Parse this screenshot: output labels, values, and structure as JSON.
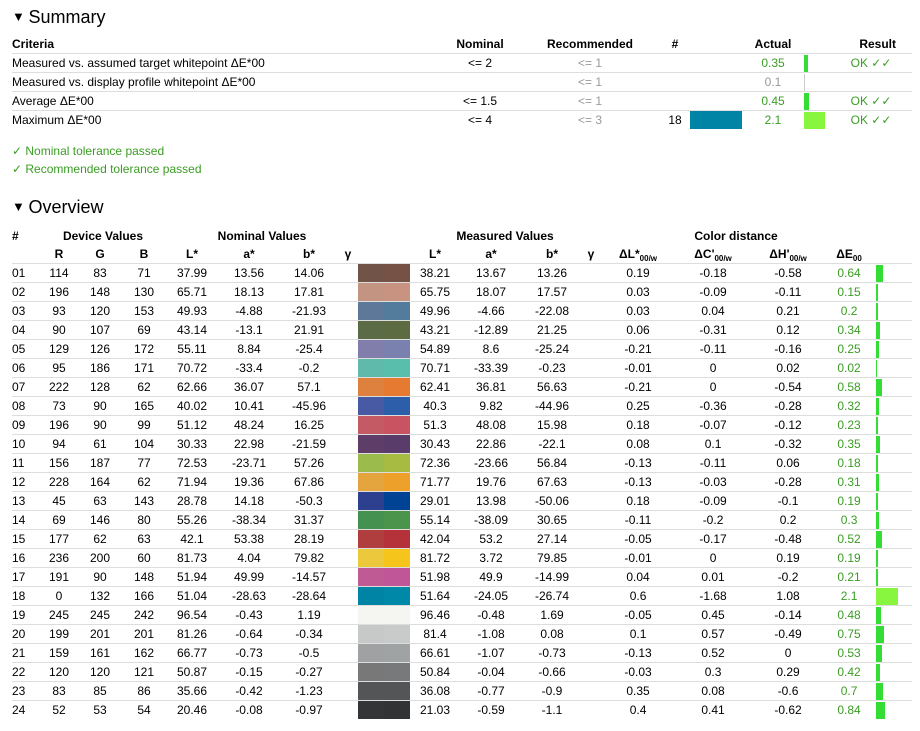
{
  "summary": {
    "heading": "Summary",
    "columns": [
      "Criteria",
      "Nominal",
      "Recommended",
      "#",
      "Actual",
      "Result"
    ],
    "rows": [
      {
        "criteria": "Measured vs. assumed target whitepoint ΔE*00",
        "nominal": "<= 2",
        "recommended": "<= 1",
        "actual": 0.35,
        "result": "OK ✓✓"
      },
      {
        "criteria": "Measured vs. display profile whitepoint ΔE*00",
        "recommended": "<= 1",
        "actual": 0.1
      },
      {
        "criteria": "Average ΔE*00",
        "nominal": "<= 1.5",
        "recommended": "<= 1",
        "actual": 0.45,
        "result": "OK ✓✓"
      },
      {
        "criteria": "Maximum ΔE*00",
        "nominal": "<= 4",
        "recommended": "<= 3",
        "patch": 18,
        "actual": 2.1,
        "result": "OK ✓✓"
      }
    ]
  },
  "notes": [
    "✓ Nominal tolerance passed",
    "✓ Recommended tolerance passed"
  ],
  "overview": {
    "heading": "Overview",
    "groups": [
      "#",
      "Device Values",
      "Nominal Values",
      "Measured Values",
      "Color distance"
    ],
    "columns": [
      "R",
      "G",
      "B",
      "L*",
      "a*",
      "b*",
      "γ",
      "L*",
      "a*",
      "b*",
      "γ",
      {
        "text": "ΔL*",
        "sub": "00/w"
      },
      {
        "text": "ΔC'",
        "sub": "00/w"
      },
      {
        "text": "ΔH'",
        "sub": "00/w"
      },
      {
        "text": "ΔE",
        "sub": "00"
      }
    ],
    "rows": [
      [
        "01",
        114,
        83,
        71,
        37.99,
        13.56,
        14.06,
        38.21,
        13.67,
        13.26,
        0.19,
        -0.18,
        -0.58,
        0.64
      ],
      [
        "02",
        196,
        148,
        130,
        65.71,
        18.13,
        17.81,
        65.75,
        18.07,
        17.57,
        0.03,
        -0.09,
        -0.11,
        0.15
      ],
      [
        "03",
        93,
        120,
        153,
        49.93,
        -4.88,
        -21.93,
        49.96,
        -4.66,
        -22.08,
        0.03,
        0.04,
        0.21,
        0.2
      ],
      [
        "04",
        90,
        107,
        69,
        43.14,
        -13.1,
        21.91,
        43.21,
        -12.89,
        21.25,
        0.06,
        -0.31,
        0.12,
        0.34
      ],
      [
        "05",
        129,
        126,
        172,
        55.11,
        8.84,
        -25.4,
        54.89,
        8.6,
        -25.24,
        -0.21,
        -0.11,
        -0.16,
        0.25
      ],
      [
        "06",
        95,
        186,
        171,
        70.72,
        -33.4,
        -0.2,
        70.71,
        -33.39,
        -0.23,
        -0.01,
        0,
        0.02,
        0.02
      ],
      [
        "07",
        222,
        128,
        62,
        62.66,
        36.07,
        57.1,
        62.41,
        36.81,
        56.63,
        -0.21,
        0,
        -0.54,
        0.58
      ],
      [
        "08",
        73,
        90,
        165,
        40.02,
        10.41,
        -45.96,
        40.3,
        9.82,
        -44.96,
        0.25,
        -0.36,
        -0.28,
        0.32
      ],
      [
        "09",
        196,
        90,
        99,
        51.12,
        48.24,
        16.25,
        51.3,
        48.08,
        15.98,
        0.18,
        -0.07,
        -0.12,
        0.23
      ],
      [
        "10",
        94,
        61,
        104,
        30.33,
        22.98,
        -21.59,
        30.43,
        22.86,
        -22.1,
        0.08,
        0.1,
        -0.32,
        0.35
      ],
      [
        "11",
        156,
        187,
        77,
        72.53,
        -23.71,
        57.26,
        72.36,
        -23.66,
        56.84,
        -0.13,
        -0.11,
        0.06,
        0.18
      ],
      [
        "12",
        228,
        164,
        62,
        71.94,
        19.36,
        67.86,
        71.77,
        19.76,
        67.63,
        -0.13,
        -0.03,
        -0.28,
        0.31
      ],
      [
        "13",
        45,
        63,
        143,
        28.78,
        14.18,
        -50.3,
        29.01,
        13.98,
        -50.06,
        0.18,
        -0.09,
        -0.1,
        0.19
      ],
      [
        "14",
        69,
        146,
        80,
        55.26,
        -38.34,
        31.37,
        55.14,
        -38.09,
        30.65,
        -0.11,
        -0.2,
        0.2,
        0.3
      ],
      [
        "15",
        177,
        62,
        63,
        42.1,
        53.38,
        28.19,
        42.04,
        53.2,
        27.14,
        -0.05,
        -0.17,
        -0.48,
        0.52
      ],
      [
        "16",
        236,
        200,
        60,
        81.73,
        4.04,
        79.82,
        81.72,
        3.72,
        79.85,
        -0.01,
        0,
        0.19,
        0.19
      ],
      [
        "17",
        191,
        90,
        148,
        51.94,
        49.99,
        -14.57,
        51.98,
        49.9,
        -14.99,
        0.04,
        0.01,
        -0.2,
        0.21
      ],
      [
        "18",
        0,
        132,
        166,
        51.04,
        -28.63,
        -28.64,
        51.64,
        -24.05,
        -26.74,
        0.6,
        -1.68,
        1.08,
        2.1
      ],
      [
        "19",
        245,
        245,
        242,
        96.54,
        -0.43,
        1.19,
        96.46,
        -0.48,
        1.69,
        -0.05,
        0.45,
        -0.14,
        0.48
      ],
      [
        "20",
        199,
        201,
        201,
        81.26,
        -0.64,
        -0.34,
        81.4,
        -1.08,
        0.08,
        0.1,
        0.57,
        -0.49,
        0.75
      ],
      [
        "21",
        159,
        161,
        162,
        66.77,
        -0.73,
        -0.5,
        66.61,
        -1.07,
        -0.73,
        -0.13,
        0.52,
        0,
        0.53
      ],
      [
        "22",
        120,
        120,
        121,
        50.87,
        -0.15,
        -0.27,
        50.84,
        -0.04,
        -0.66,
        -0.03,
        0.3,
        0.29,
        0.42
      ],
      [
        "23",
        83,
        85,
        86,
        35.66,
        -0.42,
        -1.23,
        36.08,
        -0.77,
        -0.9,
        0.35,
        0.08,
        -0.6,
        0.7
      ],
      [
        "24",
        52,
        53,
        54,
        20.46,
        -0.08,
        -0.97,
        21.03,
        -0.59,
        -1.1,
        0.4,
        0.41,
        -0.62,
        0.84
      ]
    ]
  }
}
